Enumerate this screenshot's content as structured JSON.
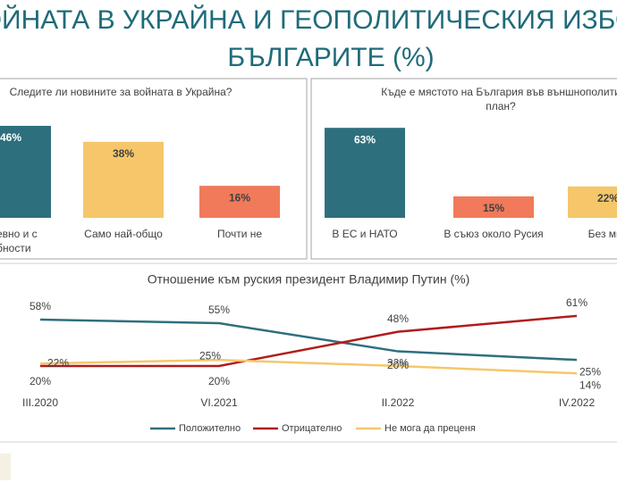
{
  "title_lines": [
    "ОЙНАТА В УКРАЙНА И ГЕОПОЛИТИЧЕСКИЯ ИЗБО",
    "БЪЛГАРИТЕ (%)"
  ],
  "chart_data": [
    {
      "type": "bar",
      "title": [
        "Следите ли новините за войната в Украйна?"
      ],
      "categories": [
        [
          "дневно и с",
          "обности"
        ],
        [
          "Само най-общо"
        ],
        [
          "Почти не"
        ]
      ],
      "values": [
        46,
        38,
        16
      ],
      "value_labels": [
        "46%",
        "38%",
        "16%"
      ],
      "colors": [
        "#2e6f7e",
        "#f5c76a",
        "#f07a5a"
      ]
    },
    {
      "type": "bar",
      "title": [
        "Къде е мястото на България във външнополити",
        "план?"
      ],
      "categories": [
        [
          "В ЕС и НАТО"
        ],
        [
          "В съюз около Русия"
        ],
        [
          "Без мне"
        ]
      ],
      "values": [
        63,
        15,
        22
      ],
      "value_labels": [
        "63%",
        "15%",
        "22%"
      ],
      "colors": [
        "#2e6f7e",
        "#f07a5a",
        "#f5c76a"
      ]
    },
    {
      "type": "line",
      "title": [
        "Отношение към руския президент Владимир Путин (%)"
      ],
      "x": [
        "III.2020",
        "VI.2021",
        "II.2022",
        "IV.2022"
      ],
      "series": [
        {
          "name": "Положително",
          "color": "#2e6f7e",
          "values": [
            58,
            55,
            32,
            25
          ],
          "value_labels": [
            "58%",
            "55%",
            "32%",
            "25%"
          ]
        },
        {
          "name": "Отрицателно",
          "color": "#b01c1c",
          "values": [
            20,
            20,
            48,
            61
          ],
          "value_labels": [
            "20%",
            "20%",
            "48%",
            "61%"
          ]
        },
        {
          "name": "Не мога да преценя",
          "color": "#f5c76a",
          "values": [
            22,
            25,
            20,
            14
          ],
          "value_labels": [
            "22%",
            "25%",
            "20%",
            "14%"
          ]
        }
      ]
    }
  ]
}
